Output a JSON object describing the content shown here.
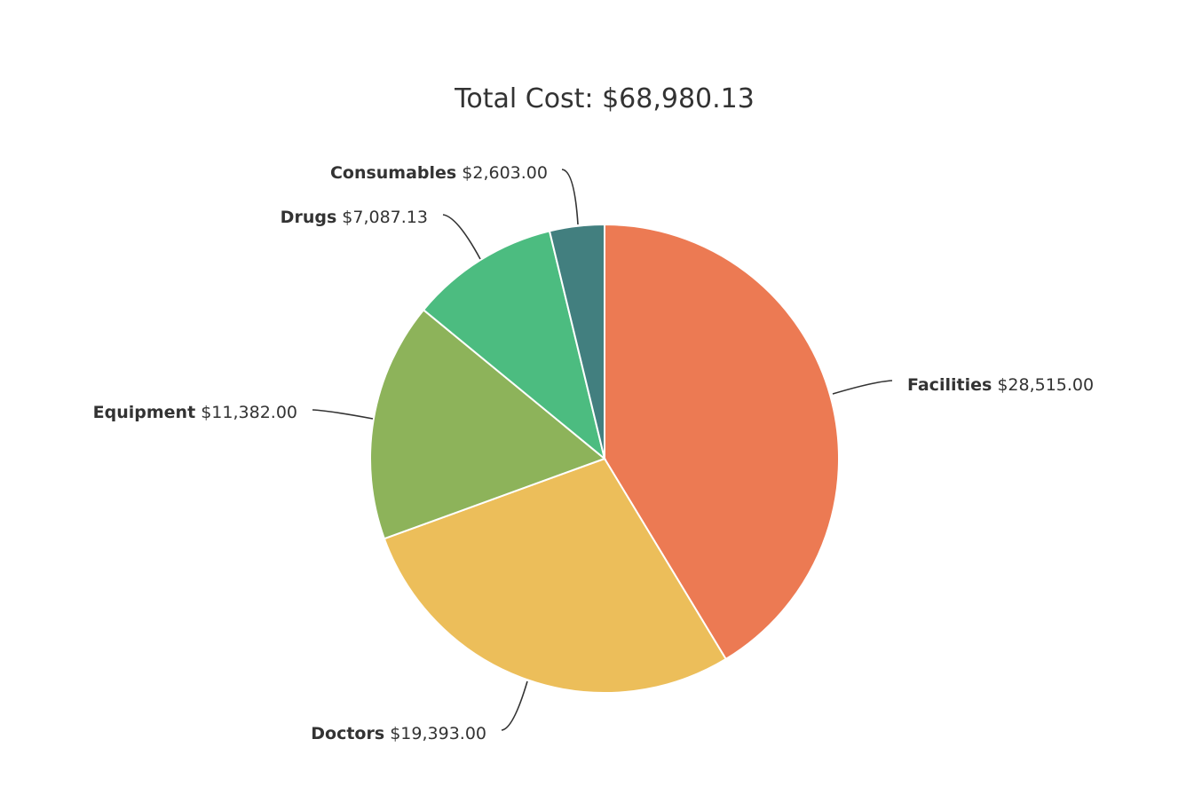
{
  "chart_data": {
    "type": "pie",
    "title": "Total Cost: $68,980.13",
    "slices": [
      {
        "name": "Facilities",
        "value": 28515.0,
        "value_label": "$28,515.00",
        "color": "#EC7A53"
      },
      {
        "name": "Doctors",
        "value": 19393.0,
        "value_label": "$19,393.00",
        "color": "#ECBE5A"
      },
      {
        "name": "Equipment",
        "value": 11382.0,
        "value_label": "$11,382.00",
        "color": "#8DB35A"
      },
      {
        "name": "Drugs",
        "value": 7087.13,
        "value_label": "$7,087.13",
        "color": "#4CBC80"
      },
      {
        "name": "Consumables",
        "value": 2603.0,
        "value_label": "$2,603.00",
        "color": "#427F7F"
      }
    ],
    "start_angle": "top",
    "direction": "clockwise"
  }
}
